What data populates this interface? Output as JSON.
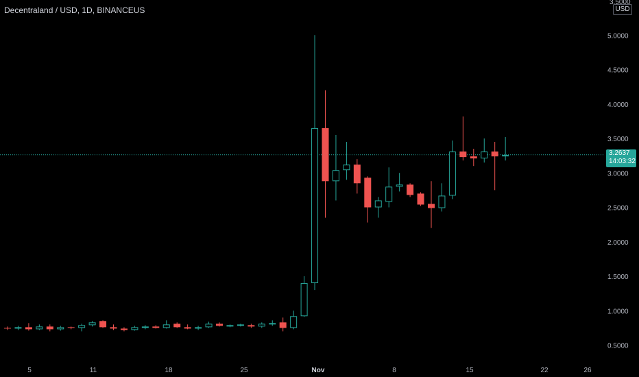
{
  "header": {
    "title": "Decentraland / USD, 1D, BINANCEUS",
    "currency": "USD"
  },
  "last_price": {
    "value": "3.2637",
    "countdown": "14:03:32"
  },
  "colors": {
    "up": "#26a69a",
    "down": "#ef5350",
    "background": "#000000",
    "price_line": "#26a69a"
  },
  "chart_data": {
    "type": "candlestick",
    "title": "Decentraland / USD, 1D, BINANCEUS",
    "ylim": [
      0.3,
      5.3
    ],
    "y_ticks": [
      "0.5000",
      "1.0000",
      "1.5000",
      "2.0000",
      "2.5000",
      "3.0000",
      "3.5000",
      "4.0000",
      "4.5000",
      "5.0000"
    ],
    "y_tick_partial": "3.5000",
    "x_ticks": [
      "5",
      "11",
      "18",
      "25",
      "Nov",
      "8",
      "15",
      "22",
      "26"
    ],
    "last_price": 3.2637,
    "candles": [
      {
        "date": "Oct 1",
        "o": 0.75,
        "h": 0.77,
        "l": 0.72,
        "c": 0.74
      },
      {
        "date": "Oct 2",
        "o": 0.74,
        "h": 0.78,
        "l": 0.72,
        "c": 0.76
      },
      {
        "date": "Oct 3",
        "o": 0.76,
        "h": 0.82,
        "l": 0.71,
        "c": 0.73
      },
      {
        "date": "Oct 4",
        "o": 0.73,
        "h": 0.8,
        "l": 0.72,
        "c": 0.77
      },
      {
        "date": "Oct 5",
        "o": 0.77,
        "h": 0.8,
        "l": 0.7,
        "c": 0.73
      },
      {
        "date": "Oct 6",
        "o": 0.73,
        "h": 0.78,
        "l": 0.71,
        "c": 0.76
      },
      {
        "date": "Oct 7",
        "o": 0.76,
        "h": 0.77,
        "l": 0.73,
        "c": 0.75
      },
      {
        "date": "Oct 8",
        "o": 0.75,
        "h": 0.81,
        "l": 0.7,
        "c": 0.79
      },
      {
        "date": "Oct 9",
        "o": 0.79,
        "h": 0.85,
        "l": 0.77,
        "c": 0.83
      },
      {
        "date": "Oct 10",
        "o": 0.85,
        "h": 0.86,
        "l": 0.75,
        "c": 0.76
      },
      {
        "date": "Oct 11",
        "o": 0.76,
        "h": 0.8,
        "l": 0.72,
        "c": 0.74
      },
      {
        "date": "Oct 12",
        "o": 0.74,
        "h": 0.76,
        "l": 0.7,
        "c": 0.72
      },
      {
        "date": "Oct 13",
        "o": 0.72,
        "h": 0.78,
        "l": 0.71,
        "c": 0.76
      },
      {
        "date": "Oct 14",
        "o": 0.76,
        "h": 0.79,
        "l": 0.73,
        "c": 0.77
      },
      {
        "date": "Oct 15",
        "o": 0.77,
        "h": 0.79,
        "l": 0.74,
        "c": 0.75
      },
      {
        "date": "Oct 16",
        "o": 0.75,
        "h": 0.86,
        "l": 0.74,
        "c": 0.8
      },
      {
        "date": "Oct 17",
        "o": 0.81,
        "h": 0.83,
        "l": 0.75,
        "c": 0.76
      },
      {
        "date": "Oct 18",
        "o": 0.76,
        "h": 0.8,
        "l": 0.73,
        "c": 0.74
      },
      {
        "date": "Oct 19",
        "o": 0.74,
        "h": 0.78,
        "l": 0.72,
        "c": 0.76
      },
      {
        "date": "Oct 20",
        "o": 0.76,
        "h": 0.84,
        "l": 0.75,
        "c": 0.81
      },
      {
        "date": "Oct 21",
        "o": 0.81,
        "h": 0.83,
        "l": 0.77,
        "c": 0.78
      },
      {
        "date": "Oct 22",
        "o": 0.78,
        "h": 0.8,
        "l": 0.76,
        "c": 0.79
      },
      {
        "date": "Oct 23",
        "o": 0.79,
        "h": 0.81,
        "l": 0.77,
        "c": 0.8
      },
      {
        "date": "Oct 24",
        "o": 0.79,
        "h": 0.81,
        "l": 0.75,
        "c": 0.77
      },
      {
        "date": "Oct 25",
        "o": 0.77,
        "h": 0.83,
        "l": 0.75,
        "c": 0.81
      },
      {
        "date": "Oct 26",
        "o": 0.81,
        "h": 0.86,
        "l": 0.78,
        "c": 0.82
      },
      {
        "date": "Oct 27",
        "o": 0.83,
        "h": 0.9,
        "l": 0.7,
        "c": 0.75
      },
      {
        "date": "Oct 28",
        "o": 0.75,
        "h": 1.0,
        "l": 0.73,
        "c": 0.92
      },
      {
        "date": "Oct 29",
        "o": 0.92,
        "h": 1.5,
        "l": 0.91,
        "c": 1.4
      },
      {
        "date": "Oct 30",
        "o": 1.4,
        "h": 5.0,
        "l": 1.3,
        "c": 3.65
      },
      {
        "date": "Oct 31",
        "o": 3.65,
        "h": 4.2,
        "l": 2.35,
        "c": 2.88
      },
      {
        "date": "Nov 1",
        "o": 2.88,
        "h": 3.55,
        "l": 2.6,
        "c": 3.04
      },
      {
        "date": "Nov 2",
        "o": 3.04,
        "h": 3.45,
        "l": 2.9,
        "c": 3.12
      },
      {
        "date": "Nov 3",
        "o": 3.12,
        "h": 3.2,
        "l": 2.7,
        "c": 2.85
      },
      {
        "date": "Nov 4",
        "o": 2.93,
        "h": 2.95,
        "l": 2.28,
        "c": 2.5
      },
      {
        "date": "Nov 5",
        "o": 2.5,
        "h": 2.65,
        "l": 2.35,
        "c": 2.6
      },
      {
        "date": "Nov 6",
        "o": 2.58,
        "h": 3.08,
        "l": 2.5,
        "c": 2.8
      },
      {
        "date": "Nov 7",
        "o": 2.8,
        "h": 3.0,
        "l": 2.73,
        "c": 2.83
      },
      {
        "date": "Nov 8",
        "o": 2.83,
        "h": 2.85,
        "l": 2.65,
        "c": 2.68
      },
      {
        "date": "Nov 9",
        "o": 2.7,
        "h": 2.72,
        "l": 2.52,
        "c": 2.54
      },
      {
        "date": "Nov 10",
        "o": 2.55,
        "h": 2.88,
        "l": 2.2,
        "c": 2.49
      },
      {
        "date": "Nov 11",
        "o": 2.49,
        "h": 2.85,
        "l": 2.44,
        "c": 2.67
      },
      {
        "date": "Nov 12",
        "o": 2.67,
        "h": 3.47,
        "l": 2.62,
        "c": 3.31
      },
      {
        "date": "Nov 13",
        "o": 3.31,
        "h": 3.82,
        "l": 3.18,
        "c": 3.23
      },
      {
        "date": "Nov 14",
        "o": 3.24,
        "h": 3.35,
        "l": 3.1,
        "c": 3.21
      },
      {
        "date": "Nov 15",
        "o": 3.21,
        "h": 3.5,
        "l": 3.15,
        "c": 3.31
      },
      {
        "date": "Nov 16",
        "o": 3.31,
        "h": 3.45,
        "l": 2.75,
        "c": 3.24
      },
      {
        "date": "Nov 17",
        "o": 3.24,
        "h": 3.52,
        "l": 3.18,
        "c": 3.26
      }
    ]
  }
}
